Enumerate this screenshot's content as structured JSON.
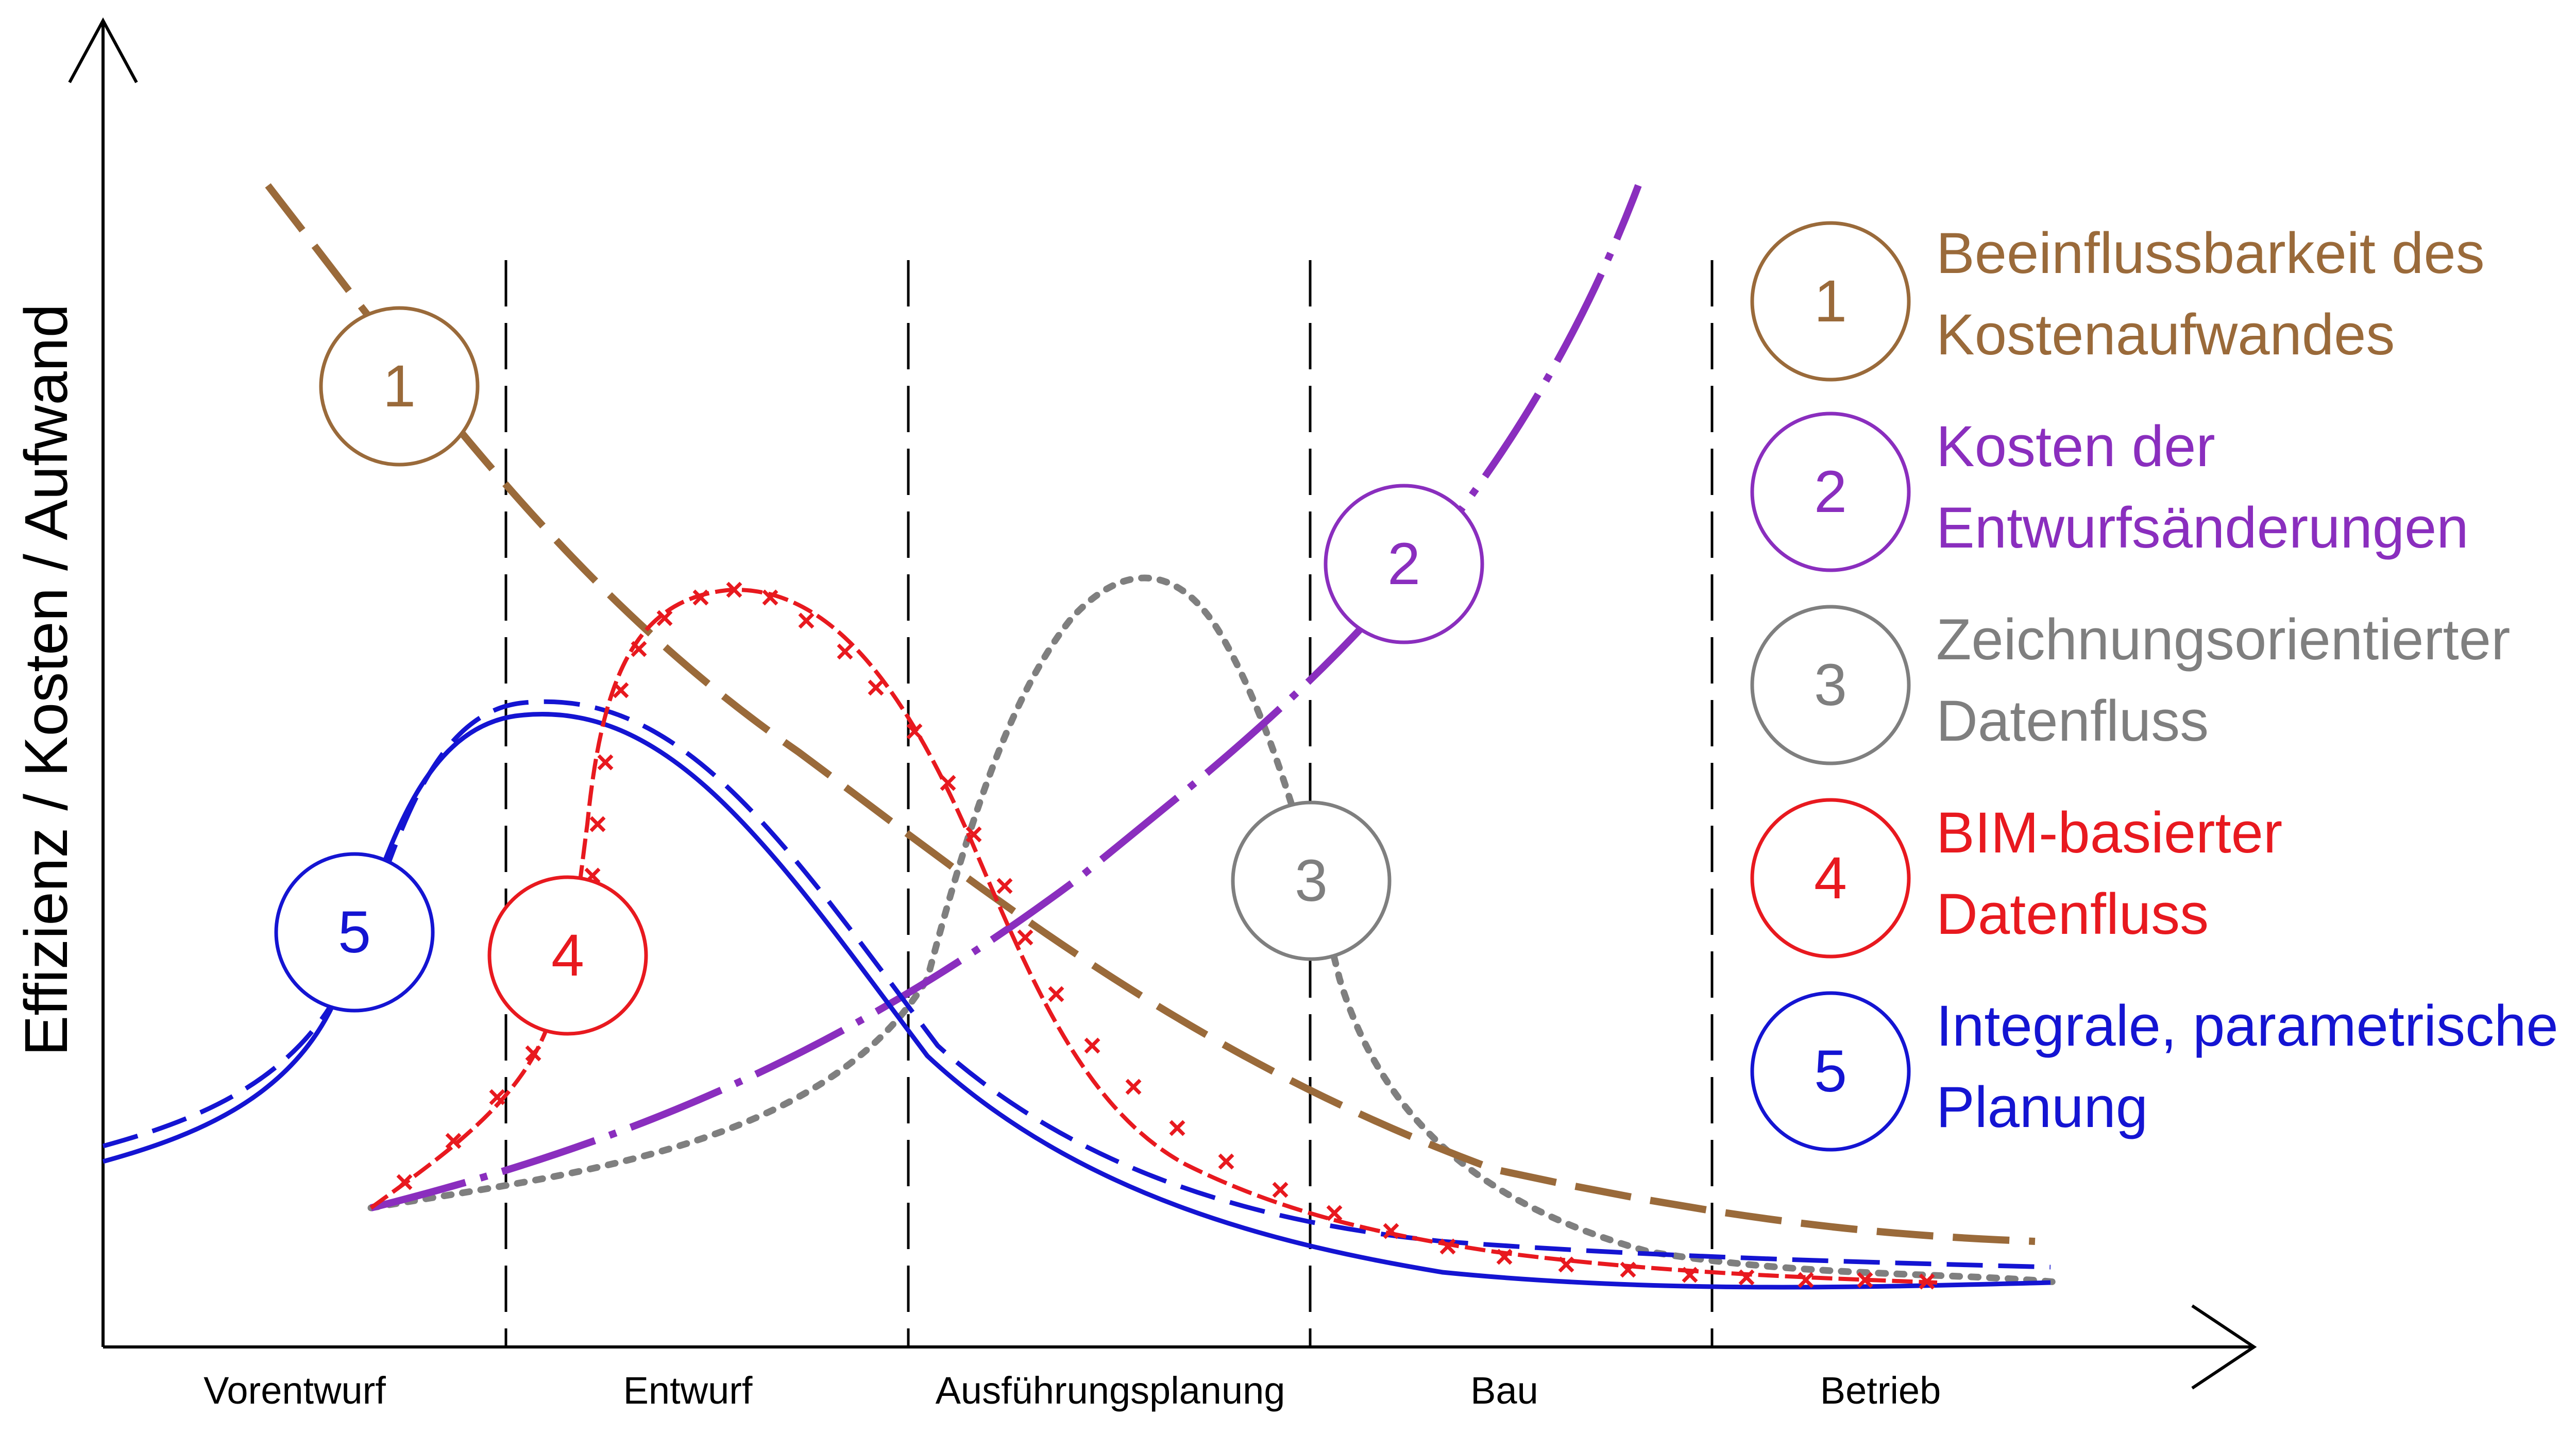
{
  "axis": {
    "y_label": "Effizienz / Kosten / Aufwand"
  },
  "phases": [
    "Vorentwurf",
    "Entwurf",
    "Ausführungsplanung",
    "Bau",
    "Betrieb"
  ],
  "curves": [
    {
      "id": "1",
      "number": "1",
      "color": "#9a6a3a",
      "legend_lines": [
        "Beeinflussbarkeit des",
        "Kostenaufwandes"
      ],
      "style": "long-dash"
    },
    {
      "id": "2",
      "number": "2",
      "color": "#8a2ebe",
      "legend_lines": [
        "Kosten der",
        "Entwurfsänderungen"
      ],
      "style": "dash-dot"
    },
    {
      "id": "3",
      "number": "3",
      "color": "#7f7f7f",
      "legend_lines": [
        "Zeichnungsorientierter",
        "Datenfluss"
      ],
      "style": "dotted"
    },
    {
      "id": "4",
      "number": "4",
      "color": "#e8191f",
      "legend_lines": [
        "BIM-basierter",
        "Datenfluss"
      ],
      "style": "dash-x"
    },
    {
      "id": "5",
      "number": "5",
      "color": "#1414d2",
      "legend_lines": [
        "Integrale, parametrische",
        "Planung"
      ],
      "style": "solid-and-dashed"
    }
  ]
}
